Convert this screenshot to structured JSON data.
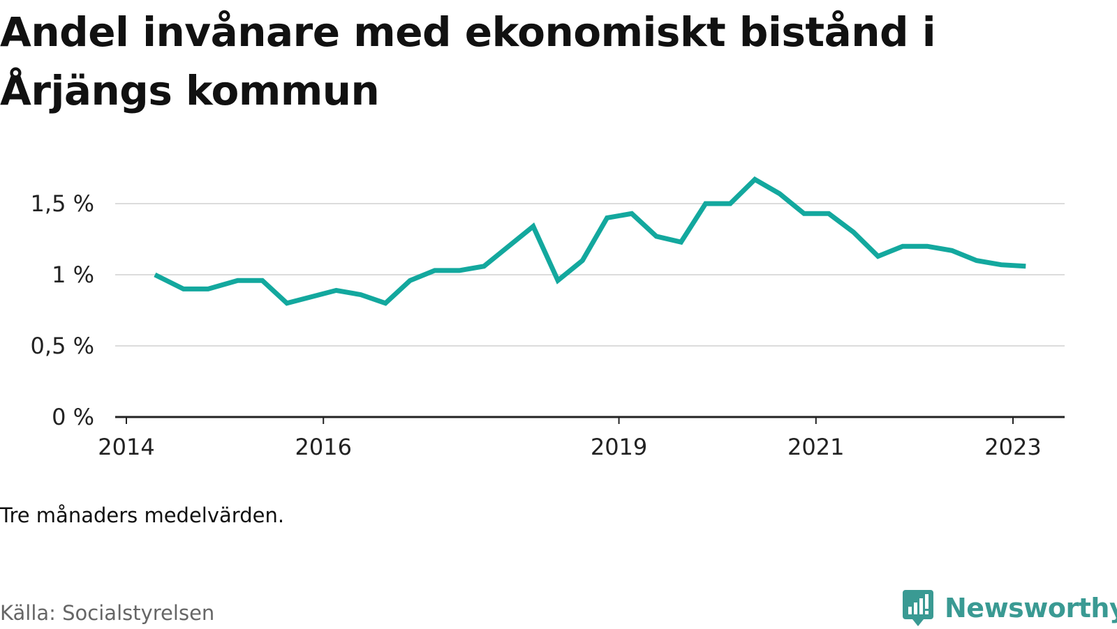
{
  "title": "Andel invånare med ekonomiskt bistånd i Årjängs kommun",
  "note": "Tre månaders medelvärden.",
  "source": "Källa: Socialstyrelsen",
  "brand": {
    "name": "Newsworthy",
    "logo_icon": "bar-chart-speech-bubble-icon",
    "color": "#3a9a93"
  },
  "chart_data": {
    "type": "line",
    "title": "Andel invånare med ekonomiskt bistånd i Årjängs kommun",
    "xlabel": "",
    "ylabel": "",
    "ylim": [
      0,
      1.5
    ],
    "y_ticks": [
      {
        "value": 0,
        "label": "0 %"
      },
      {
        "value": 0.5,
        "label": "0,5 %"
      },
      {
        "value": 1,
        "label": "1 %"
      },
      {
        "value": 1.5,
        "label": "1,5 %"
      }
    ],
    "x_ticks": [
      {
        "value": 2014.0,
        "label": "2014"
      },
      {
        "value": 2016.0,
        "label": "2016"
      },
      {
        "value": 2019.0,
        "label": "2019"
      },
      {
        "value": 2021.0,
        "label": "2021"
      },
      {
        "value": 2023.0,
        "label": "2023"
      }
    ],
    "grid": true,
    "line_color": "#13a89e",
    "series": [
      {
        "x": [
          2014.29,
          2014.58,
          2014.83,
          2015.13,
          2015.38,
          2015.63,
          2016.13,
          2016.38,
          2016.63,
          2016.88,
          2017.13,
          2017.38,
          2017.63,
          2017.88,
          2018.13,
          2018.38,
          2018.63,
          2018.88,
          2019.13,
          2019.38,
          2019.63,
          2019.88,
          2020.13,
          2020.38,
          2020.63,
          2020.88,
          2021.13,
          2021.38,
          2021.63,
          2021.88,
          2022.13,
          2022.38,
          2022.63,
          2022.88,
          2023.13
        ],
        "values": [
          1.0,
          0.9,
          0.9,
          0.96,
          0.96,
          0.8,
          0.89,
          0.86,
          0.8,
          0.96,
          1.03,
          1.03,
          1.06,
          1.2,
          1.34,
          0.96,
          1.1,
          1.4,
          1.43,
          1.27,
          1.23,
          1.5,
          1.5,
          1.67,
          1.57,
          1.43,
          1.43,
          1.3,
          1.13,
          1.2,
          1.2,
          1.17,
          1.1,
          1.07,
          1.06
        ]
      }
    ]
  }
}
